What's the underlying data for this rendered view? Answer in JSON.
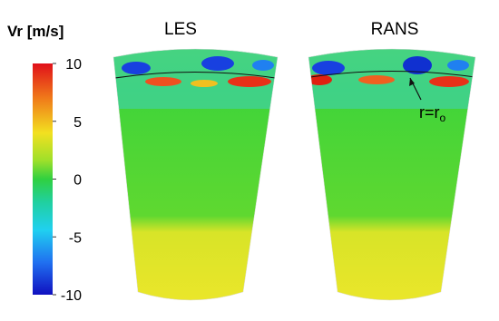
{
  "colorbar": {
    "title": "Vr [m/s]",
    "lim": [
      -10,
      10
    ],
    "ticks": [
      10,
      5,
      0,
      -5,
      -10
    ]
  },
  "panels": [
    {
      "label": "LES"
    },
    {
      "label": "RANS"
    }
  ],
  "annotation": {
    "text": "r=r",
    "subscript": "o"
  }
}
